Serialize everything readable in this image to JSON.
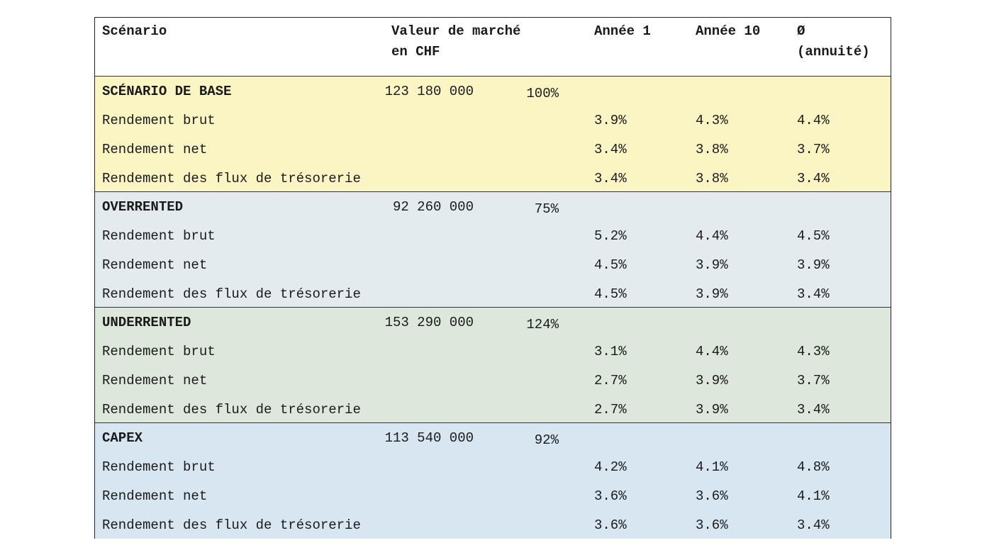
{
  "header": {
    "scenario": "Scénario",
    "market_value": [
      "Valeur de marché",
      "en CHF"
    ],
    "year1": "Année 1",
    "year10": "Année 10",
    "annuity": [
      "Ø",
      "(annuité)"
    ]
  },
  "groups": [
    {
      "name": "SCÉNARIO DE BASE",
      "value": "123 180 000",
      "share": "100%",
      "color": "#fbf5c3",
      "rows": [
        {
          "label": "Rendement brut",
          "values": [
            "3.9%",
            "4.3%",
            "4.4%"
          ]
        },
        {
          "label": "Rendement net",
          "values": [
            "3.4%",
            "3.8%",
            "3.7%"
          ]
        },
        {
          "label": "Rendement des flux de trésorerie",
          "values": [
            "3.4%",
            "3.8%",
            "3.4%"
          ]
        }
      ]
    },
    {
      "name": "OVERRENTED",
      "value": "92 260 000",
      "share": "75%",
      "color": "#e4ebee",
      "rows": [
        {
          "label": "Rendement brut",
          "values": [
            "5.2%",
            "4.4%",
            "4.5%"
          ]
        },
        {
          "label": "Rendement net",
          "values": [
            "4.5%",
            "3.9%",
            "3.9%"
          ]
        },
        {
          "label": "Rendement des flux de trésorerie",
          "values": [
            "4.5%",
            "3.9%",
            "3.4%"
          ]
        }
      ]
    },
    {
      "name": "UNDERRENTED",
      "value": "153 290 000",
      "share": "124%",
      "color": "#dde7dc",
      "rows": [
        {
          "label": "Rendement brut",
          "values": [
            "3.1%",
            "4.4%",
            "4.3%"
          ]
        },
        {
          "label": "Rendement net",
          "values": [
            "2.7%",
            "3.9%",
            "3.7%"
          ]
        },
        {
          "label": "Rendement des flux de trésorerie",
          "values": [
            "2.7%",
            "3.9%",
            "3.4%"
          ]
        }
      ]
    },
    {
      "name": "CAPEX",
      "value": "113 540 000",
      "share": "92%",
      "color": "#d8e6f1",
      "rows": [
        {
          "label": "Rendement brut",
          "values": [
            "4.2%",
            "4.1%",
            "4.8%"
          ]
        },
        {
          "label": "Rendement net",
          "values": [
            "3.6%",
            "3.6%",
            "4.1%"
          ]
        },
        {
          "label": "Rendement des flux de trésorerie",
          "values": [
            "3.6%",
            "3.6%",
            "3.4%"
          ]
        }
      ]
    }
  ]
}
